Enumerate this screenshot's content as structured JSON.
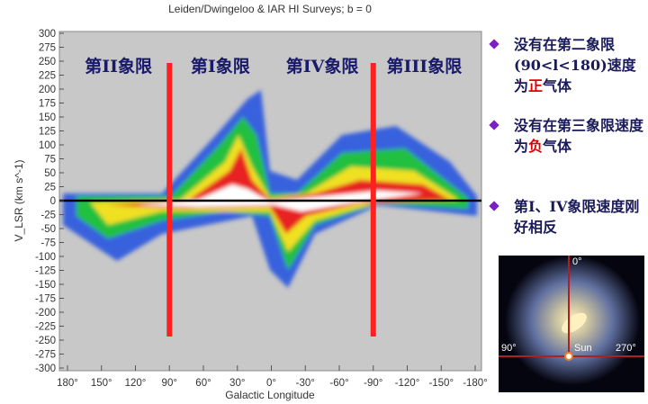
{
  "chart_data": {
    "type": "heatmap",
    "title": "Leiden/Dwingeloo & IAR HI Surveys;  b = 0",
    "xlabel": "Galactic Longitude",
    "ylabel": "V_LSR (km s^-1)",
    "xlim": [
      180,
      -180
    ],
    "ylim": [
      -300,
      300
    ],
    "x_ticks": [
      "180°",
      "150°",
      "120°",
      "90°",
      "60°",
      "30°",
      "0°",
      "-30°",
      "-60°",
      "-90°",
      "-120°",
      "-150°",
      "-180°"
    ],
    "x_tick_values": [
      180,
      150,
      120,
      90,
      60,
      30,
      0,
      -30,
      -60,
      -90,
      -120,
      -150,
      -180
    ],
    "y_ticks": [
      "300",
      "275",
      "250",
      "225",
      "200",
      "175",
      "150",
      "125",
      "100",
      "75",
      "50",
      "25",
      "0",
      "-25",
      "-50",
      "-75",
      "-100",
      "-125",
      "-150",
      "-175",
      "-200",
      "-225",
      "-250",
      "-275",
      "-300"
    ],
    "y_tick_values": [
      300,
      275,
      250,
      225,
      200,
      175,
      150,
      125,
      100,
      75,
      50,
      25,
      0,
      -25,
      -50,
      -75,
      -100,
      -125,
      -150,
      -175,
      -200,
      -225,
      -250,
      -275,
      -300
    ],
    "quadrant_labels": [
      "第II象限",
      "第I象限",
      "第IV象限",
      "第III象限"
    ],
    "quadrant_dividers_longitude": [
      90,
      -90
    ],
    "colors": {
      "divider": "#ff2020",
      "background": "#c8c8c8",
      "label": "#1a1a6a"
    }
  },
  "bullets": [
    {
      "pre": "没有在第二象限(90<l<180)速度为",
      "highlight": "正",
      "post": "气体"
    },
    {
      "pre": "没有在第三象限速度为",
      "highlight": "负",
      "post": "气体"
    },
    {
      "pre": "第I、IV象限速度刚好相反",
      "highlight": "",
      "post": ""
    }
  ],
  "galaxy_inset": {
    "labels": {
      "top": "0°",
      "left": "90°",
      "sun": "Sun",
      "right": "270°"
    }
  }
}
